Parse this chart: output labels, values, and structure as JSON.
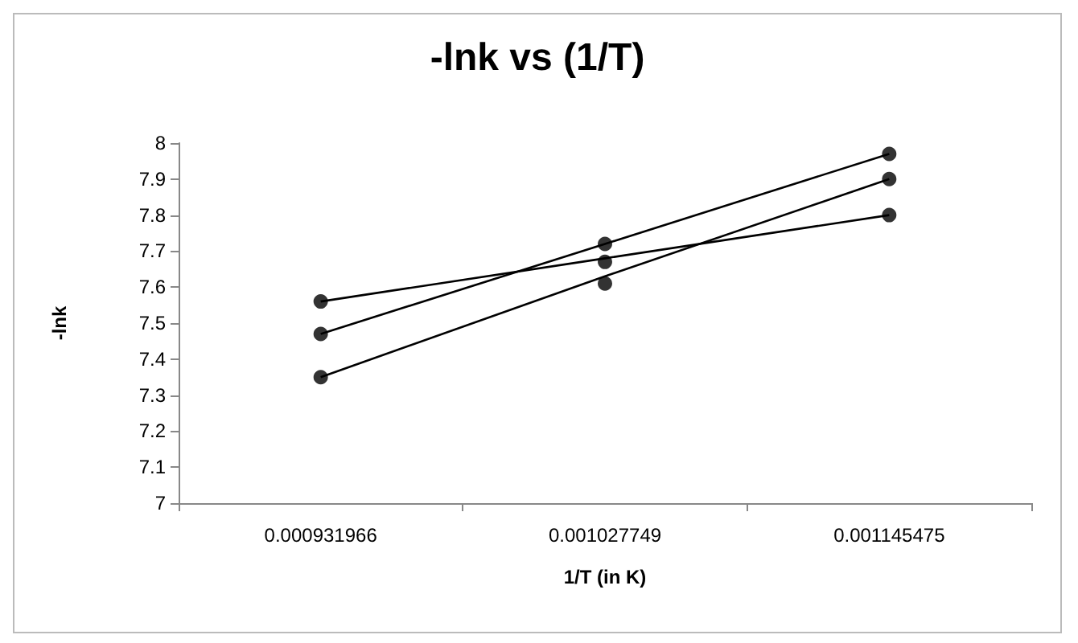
{
  "chart_data": {
    "type": "line",
    "title": "-lnk vs (1/T)",
    "xlabel": "1/T (in K)",
    "ylabel": "-lnk",
    "categories": [
      "0.000931966",
      "0.001027749",
      "0.001145475"
    ],
    "ylim": [
      7,
      8
    ],
    "yticks": [
      7,
      7.1,
      7.2,
      7.3,
      7.4,
      7.5,
      7.6,
      7.7,
      7.8,
      7.9,
      8
    ],
    "grid": false,
    "series": [
      {
        "type": "scatter",
        "color": "#000000",
        "marker": "circle",
        "values": [
          7.56,
          7.67,
          7.8
        ]
      },
      {
        "type": "scatter",
        "color": "#000000",
        "marker": "circle",
        "values": [
          7.47,
          7.72,
          7.97
        ]
      },
      {
        "type": "scatter",
        "color": "#000000",
        "marker": "circle",
        "values": [
          7.35,
          7.61,
          7.9
        ]
      },
      {
        "color": "#000000",
        "marker": "none",
        "line_style": "solid",
        "values": [
          7.56,
          7.68,
          7.8
        ]
      },
      {
        "color": "#000000",
        "marker": "none",
        "line_style": "solid",
        "values": [
          7.47,
          7.72,
          7.97
        ]
      },
      {
        "color": "#000000",
        "marker": "none",
        "line_style": "solid",
        "values": [
          7.35,
          7.63,
          7.9
        ]
      }
    ]
  }
}
